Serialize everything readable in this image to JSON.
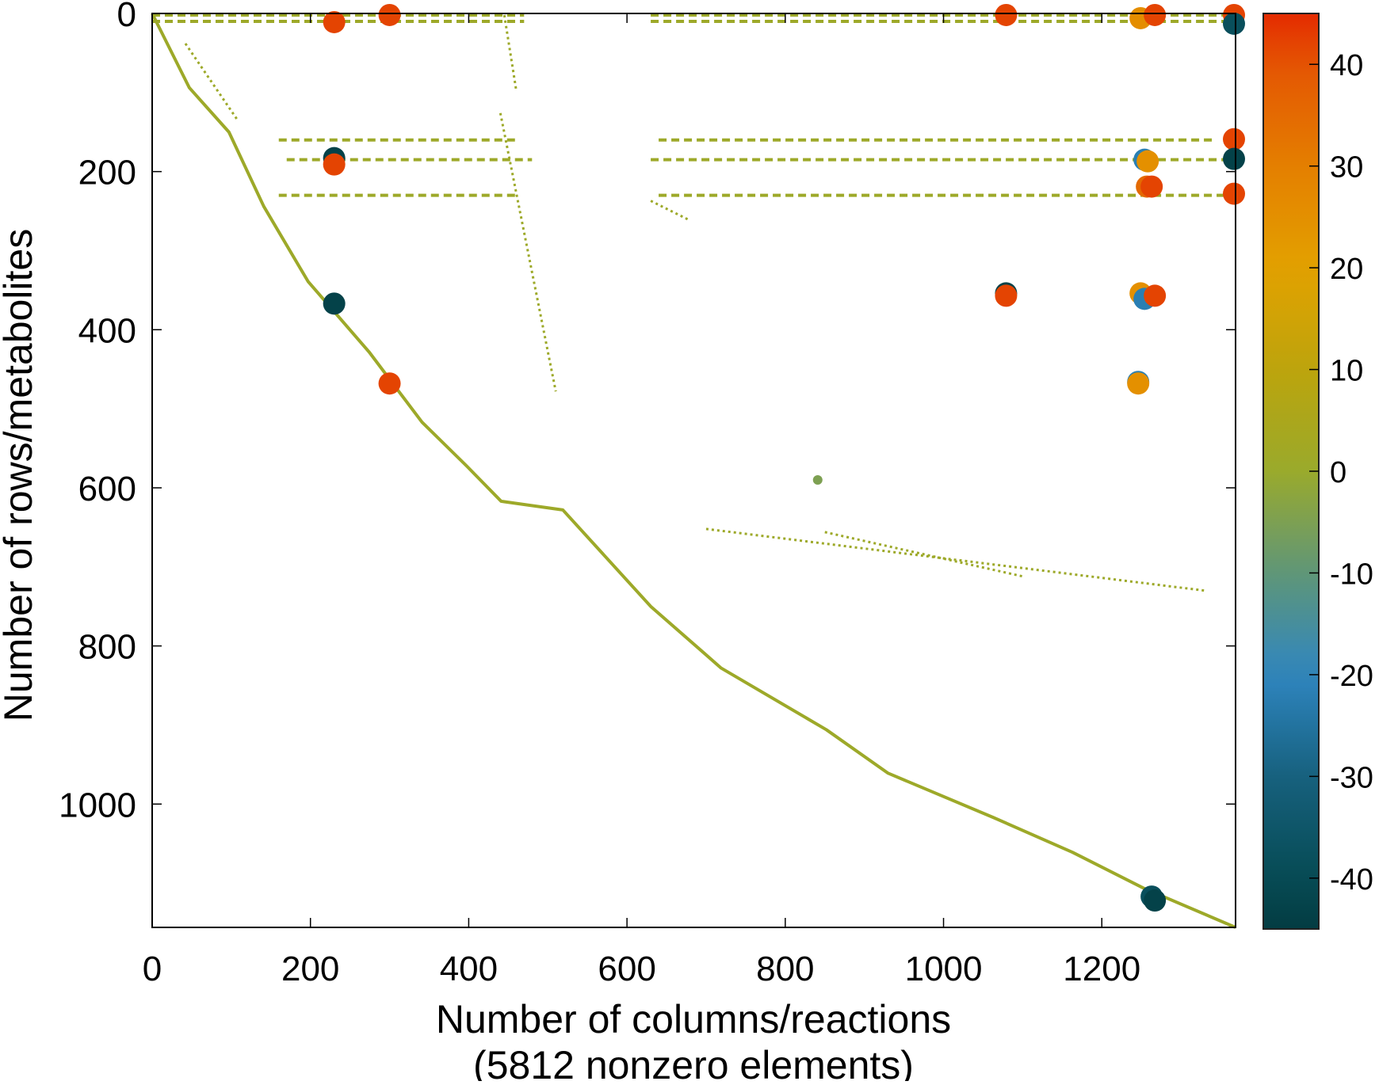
{
  "chart_data": {
    "type": "scatter",
    "title": "",
    "xlabel": "Number of columns/reactions",
    "xlabel_note": "(5812 nonzero elements)",
    "ylabel": "Number of rows/metabolites",
    "xlim": [
      0,
      1369
    ],
    "ylim": [
      1156,
      0
    ],
    "y_inverted": true,
    "grid": false,
    "x_ticks": [
      "0",
      "200",
      "400",
      "600",
      "800",
      "1000",
      "1200"
    ],
    "x_tick_values": [
      0,
      200,
      400,
      600,
      800,
      1000,
      1200
    ],
    "y_ticks": [
      "0",
      "200",
      "400",
      "600",
      "800",
      "1000"
    ],
    "y_tick_values": [
      0,
      200,
      400,
      600,
      800,
      1000
    ],
    "colorbar": {
      "range": [
        -45,
        45
      ],
      "ticks": [
        "40",
        "30",
        "20",
        "10",
        "0",
        "-10",
        "-20",
        "-30",
        "-40"
      ],
      "tick_values": [
        40,
        30,
        20,
        10,
        0,
        -10,
        -20,
        -30,
        -40
      ],
      "colormap": [
        [
          -45,
          "#033c42"
        ],
        [
          -40,
          "#064b54"
        ],
        [
          -30,
          "#17617e"
        ],
        [
          -20,
          "#2f86c0"
        ],
        [
          -10,
          "#5f9678"
        ],
        [
          0,
          "#9aaa2c"
        ],
        [
          10,
          "#bca40c"
        ],
        [
          20,
          "#e3a100"
        ],
        [
          30,
          "#e47f00"
        ],
        [
          40,
          "#e45503"
        ],
        [
          45,
          "#e42a00"
        ]
      ],
      "placement": "right"
    },
    "default_value": 1,
    "main_diagonal": [
      [
        0,
        0
      ],
      [
        47,
        94
      ],
      [
        97,
        150
      ],
      [
        141,
        244
      ],
      [
        197,
        339
      ],
      [
        274,
        428
      ],
      [
        341,
        517
      ],
      [
        397,
        572
      ],
      [
        441,
        617
      ],
      [
        519,
        628
      ],
      [
        630,
        750
      ],
      [
        719,
        828
      ],
      [
        852,
        906
      ],
      [
        930,
        961
      ],
      [
        1063,
        1017
      ],
      [
        1163,
        1061
      ],
      [
        1252,
        1106
      ],
      [
        1369,
        1156
      ]
    ],
    "secondary_diagonals": [
      [
        [
          42,
          38
        ],
        [
          108,
          135
        ]
      ],
      [
        [
          445,
          2
        ],
        [
          460,
          97
        ]
      ],
      [
        [
          440,
          126
        ],
        [
          510,
          478
        ]
      ],
      [
        [
          630,
          237
        ],
        [
          680,
          262
        ]
      ],
      [
        [
          700,
          652
        ],
        [
          1330,
          730
        ]
      ],
      [
        [
          850,
          656
        ],
        [
          1100,
          712
        ]
      ]
    ],
    "row_bands": [
      {
        "row": 2,
        "from": 0,
        "to": 470,
        "value": 1
      },
      {
        "row": 2,
        "from": 630,
        "to": 1369,
        "value": 1
      },
      {
        "row": 10,
        "from": 0,
        "to": 470,
        "value": 1
      },
      {
        "row": 10,
        "from": 630,
        "to": 1369,
        "value": 1
      },
      {
        "row": 160,
        "from": 160,
        "to": 460,
        "value": 1
      },
      {
        "row": 160,
        "from": 640,
        "to": 1340,
        "value": 1
      },
      {
        "row": 185,
        "from": 170,
        "to": 480,
        "value": 1
      },
      {
        "row": 185,
        "from": 630,
        "to": 1360,
        "value": 1
      },
      {
        "row": 230,
        "from": 160,
        "to": 460,
        "value": 1
      },
      {
        "row": 230,
        "from": 640,
        "to": 1369,
        "value": 1
      }
    ],
    "large_elements": [
      {
        "x": 230,
        "y": 11,
        "value": 42
      },
      {
        "x": 300,
        "y": 2,
        "value": 42
      },
      {
        "x": 1079,
        "y": 2,
        "value": 42
      },
      {
        "x": 1249,
        "y": 6,
        "value": 26
      },
      {
        "x": 1267,
        "y": 2,
        "value": 42
      },
      {
        "x": 1367,
        "y": 2,
        "value": 42
      },
      {
        "x": 1367,
        "y": 13,
        "value": -38
      },
      {
        "x": 230,
        "y": 183,
        "value": -43
      },
      {
        "x": 230,
        "y": 191,
        "value": 42
      },
      {
        "x": 1367,
        "y": 159,
        "value": 42
      },
      {
        "x": 1367,
        "y": 184,
        "value": -43
      },
      {
        "x": 1367,
        "y": 228,
        "value": 42
      },
      {
        "x": 1254,
        "y": 185,
        "value": -22
      },
      {
        "x": 1258,
        "y": 187,
        "value": 25
      },
      {
        "x": 1257,
        "y": 219,
        "value": 35
      },
      {
        "x": 1263,
        "y": 219,
        "value": 42
      },
      {
        "x": 230,
        "y": 367,
        "value": -43
      },
      {
        "x": 300,
        "y": 468,
        "value": 42
      },
      {
        "x": 1079,
        "y": 354,
        "value": -43
      },
      {
        "x": 1079,
        "y": 357,
        "value": 42
      },
      {
        "x": 1249,
        "y": 354,
        "value": 25
      },
      {
        "x": 1254,
        "y": 361,
        "value": -22
      },
      {
        "x": 1267,
        "y": 357,
        "value": 42
      },
      {
        "x": 1246,
        "y": 466,
        "value": -22
      },
      {
        "x": 1246,
        "y": 468,
        "value": 25
      },
      {
        "x": 1263,
        "y": 1117,
        "value": -38
      },
      {
        "x": 1267,
        "y": 1122,
        "value": -43
      },
      {
        "x": 841,
        "y": 590,
        "value": -5
      }
    ]
  }
}
